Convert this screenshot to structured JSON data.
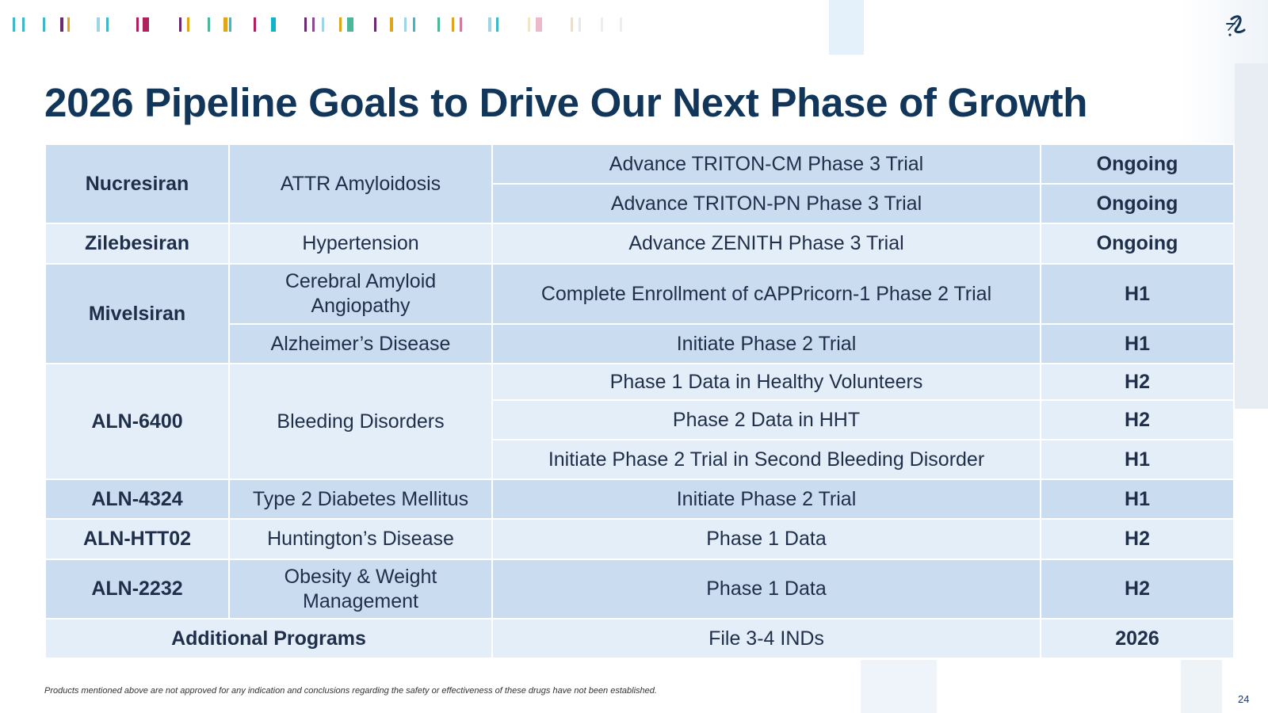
{
  "title": "2026 Pipeline Goals to Drive Our Next Phase of Growth",
  "colors": {
    "title": "#12365a",
    "row_dark": "#c9dcf0",
    "row_light": "#e4eef9",
    "bar_palette": [
      "#3fb8c9",
      "#6b2a6f",
      "#b11f5c",
      "#e2a418",
      "#4cb79a",
      "#9fd3e6"
    ]
  },
  "logo_icon": "company-logo-icon",
  "table": {
    "groups": [
      {
        "drug": "Nucresiran",
        "indications": [
          "ATTR Amyloidosis"
        ],
        "goals": [
          {
            "goal": "Advance TRITON-CM Phase 3 Trial",
            "status": "Ongoing"
          },
          {
            "goal": "Advance TRITON-PN Phase 3 Trial",
            "status": "Ongoing"
          }
        ]
      },
      {
        "drug": "Zilebesiran",
        "indications": [
          "Hypertension"
        ],
        "goals": [
          {
            "goal": "Advance ZENITH Phase 3 Trial",
            "status": "Ongoing"
          }
        ]
      },
      {
        "drug": "Mivelsiran",
        "indications": [
          "Cerebral Amyloid Angiopathy",
          "Alzheimer’s Disease"
        ],
        "goals": [
          {
            "goal": "Complete Enrollment of cAPPricorn-1 Phase 2 Trial",
            "status": "H1"
          },
          {
            "goal": "Initiate Phase 2 Trial",
            "status": "H1"
          }
        ]
      },
      {
        "drug": "ALN-6400",
        "indications": [
          "Bleeding Disorders"
        ],
        "goals": [
          {
            "goal": "Phase 1 Data in Healthy Volunteers",
            "status": "H2"
          },
          {
            "goal": "Phase 2 Data in HHT",
            "status": "H2"
          },
          {
            "goal": "Initiate Phase 2 Trial in Second Bleeding Disorder",
            "status": "H1"
          }
        ]
      },
      {
        "drug": "ALN-4324",
        "indications": [
          "Type 2 Diabetes Mellitus"
        ],
        "goals": [
          {
            "goal": "Initiate Phase 2 Trial",
            "status": "H1"
          }
        ]
      },
      {
        "drug": "ALN-HTT02",
        "indications": [
          "Huntington’s Disease"
        ],
        "goals": [
          {
            "goal": "Phase 1 Data",
            "status": "H2"
          }
        ]
      },
      {
        "drug": "ALN-2232",
        "indications": [
          "Obesity & Weight Management"
        ],
        "goals": [
          {
            "goal": "Phase 1 Data",
            "status": "H2"
          }
        ]
      }
    ],
    "additional": {
      "label": "Additional Programs",
      "goal": "File 3-4 INDs",
      "status": "2026"
    }
  },
  "footnote": "Products mentioned above are not approved for any indication and conclusions regarding the safety or effectiveness of these drugs have not been established.",
  "page_number": "24"
}
